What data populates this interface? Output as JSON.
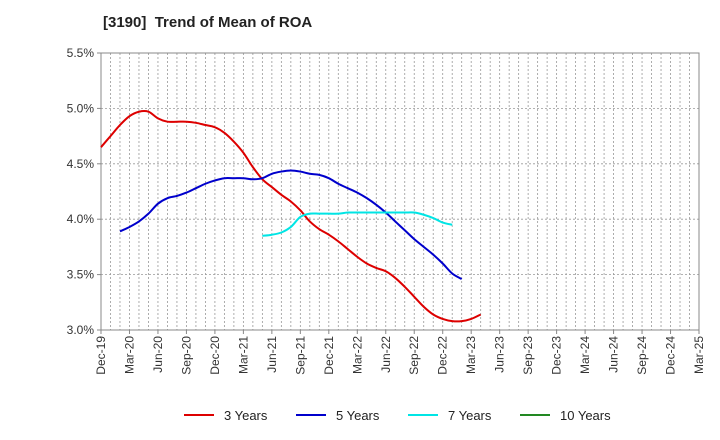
{
  "chart_data": {
    "type": "line",
    "title": "[3190]  Trend of Mean of ROA",
    "xlabel": "",
    "ylabel": "",
    "ylim": [
      3.0,
      5.5
    ],
    "y_ticks": [
      "3.0%",
      "3.5%",
      "4.0%",
      "4.5%",
      "5.0%",
      "5.5%"
    ],
    "y_tick_values": [
      3.0,
      3.5,
      4.0,
      4.5,
      5.0,
      5.5
    ],
    "x_ticks": [
      "Dec-19",
      "Mar-20",
      "Jun-20",
      "Sep-20",
      "Dec-20",
      "Mar-21",
      "Jun-21",
      "Sep-21",
      "Dec-21",
      "Mar-22",
      "Jun-22",
      "Sep-22",
      "Dec-22",
      "Mar-23",
      "Jun-23",
      "Sep-23",
      "Dec-23",
      "Mar-24",
      "Jun-24",
      "Sep-24",
      "Dec-24",
      "Mar-25"
    ],
    "grid": true,
    "legend_position": "bottom",
    "series": [
      {
        "name": "3 Years",
        "color": "#dd0000",
        "start_index": 0,
        "values": [
          4.65,
          4.75,
          4.85,
          4.93,
          4.97,
          4.97,
          4.91,
          4.88,
          4.88,
          4.88,
          4.87,
          4.85,
          4.83,
          4.78,
          4.7,
          4.6,
          4.47,
          4.36,
          4.29,
          4.22,
          4.16,
          4.08,
          3.98,
          3.91,
          3.86,
          3.8,
          3.73,
          3.66,
          3.6,
          3.56,
          3.53,
          3.47,
          3.39,
          3.3,
          3.21,
          3.14,
          3.1,
          3.08,
          3.08,
          3.1,
          3.14
        ]
      },
      {
        "name": "5 Years",
        "color": "#0000cc",
        "start_index": 2,
        "values": [
          3.89,
          3.93,
          3.98,
          4.05,
          4.14,
          4.19,
          4.21,
          4.24,
          4.28,
          4.32,
          4.35,
          4.37,
          4.37,
          4.37,
          4.36,
          4.37,
          4.41,
          4.43,
          4.44,
          4.43,
          4.41,
          4.4,
          4.37,
          4.32,
          4.28,
          4.24,
          4.19,
          4.13,
          4.06,
          3.98,
          3.9,
          3.82,
          3.75,
          3.68,
          3.6,
          3.51,
          3.46
        ]
      },
      {
        "name": "7 Years",
        "color": "#00e5e5",
        "start_index": 17,
        "values": [
          3.85,
          3.86,
          3.88,
          3.93,
          4.02,
          4.05,
          4.05,
          4.05,
          4.05,
          4.06,
          4.06,
          4.06,
          4.06,
          4.06,
          4.06,
          4.06,
          4.06,
          4.04,
          4.01,
          3.97,
          3.95
        ]
      },
      {
        "name": "10 Years",
        "color": "#228822",
        "start_index": 0,
        "values": []
      }
    ]
  }
}
